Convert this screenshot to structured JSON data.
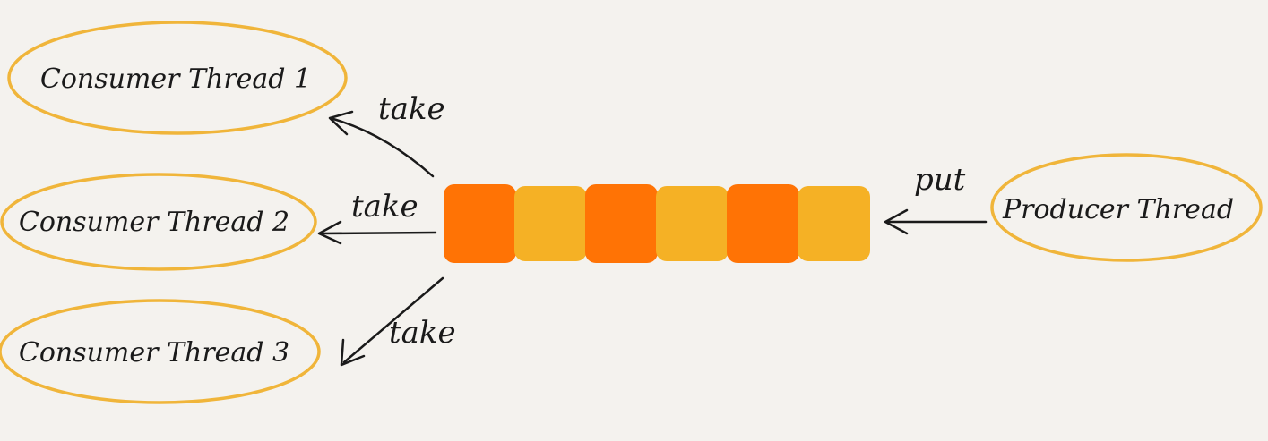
{
  "colors": {
    "background": "#f4f2ee",
    "ellipse_outline": "#f0b53a",
    "queue_dark": "#ff7305",
    "queue_light": "#f5b125",
    "ink": "#1a1a1a"
  },
  "nodes": {
    "consumer1": "Consumer Thread 1",
    "consumer2": "Consumer Thread 2",
    "consumer3": "Consumer Thread 3",
    "producer": "Producer Thread"
  },
  "edges": {
    "take1": "take",
    "take2": "take",
    "take3": "take",
    "put": "put"
  },
  "queue": {
    "cells": [
      "dark",
      "light",
      "dark",
      "light",
      "dark",
      "light"
    ]
  }
}
